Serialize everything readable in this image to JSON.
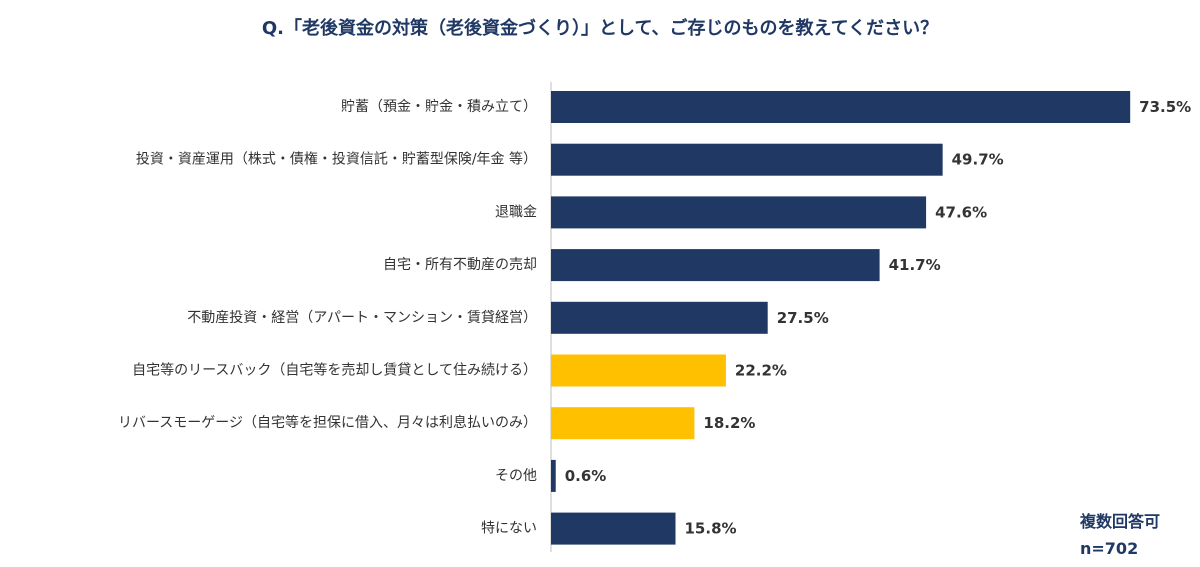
{
  "chart_data": {
    "type": "bar",
    "orientation": "horizontal",
    "title": "Q.「老後資金の対策（老後資金づくり）」として、ご存じのものを教えてください？",
    "categories": [
      "貯蓄（預金・貯金・積み立て）",
      "投資・資産運用（株式・債権・投資信託・貯蓄型保険/年金 等）",
      "退職金",
      "自宅・所有不動産の売却",
      "不動産投資・経営（アパート・マンション・賃貸経営）",
      "自宅等のリースバック（自宅等を売却し賃貸として住み続ける）",
      "リバースモーゲージ（自宅等を担保に借入、月々は利息払いのみ）",
      "その他",
      "特にない"
    ],
    "values": [
      73.5,
      49.7,
      47.6,
      41.7,
      27.5,
      22.2,
      18.2,
      0.6,
      15.8
    ],
    "value_labels": [
      "73.5%",
      "49.7%",
      "47.6%",
      "41.7%",
      "27.5%",
      "22.2%",
      "18.2%",
      "0.6%",
      "15.8%"
    ],
    "highlight": [
      false,
      false,
      false,
      false,
      false,
      true,
      true,
      false,
      false
    ],
    "xlim": [
      0,
      100
    ],
    "grid": false,
    "legend": "none",
    "colors": {
      "default": "#1F3864",
      "highlight": "#FFC000",
      "axis": "#BFBFBF"
    }
  },
  "note": {
    "line1": "複数回答可",
    "line2": "n=702"
  }
}
